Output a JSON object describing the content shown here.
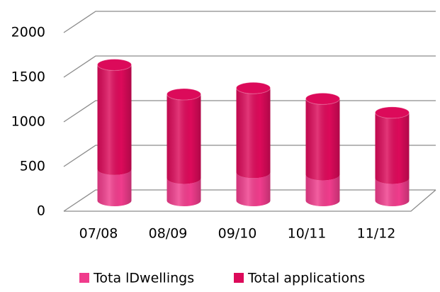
{
  "chart_data": {
    "type": "bar3d_stacked",
    "categories": [
      "07/08",
      "08/09",
      "09/10",
      "10/11",
      "11/12"
    ],
    "series": [
      {
        "name": "Tota lDwellings",
        "color": "#f03c8c",
        "values": [
          350,
          250,
          315,
          290,
          250
        ]
      },
      {
        "name": "Total applications",
        "color": "#dc0a5a",
        "values": [
          1170,
          940,
          945,
          850,
          735
        ]
      }
    ],
    "ylim": [
      0,
      2000
    ],
    "yticks": [
      0,
      500,
      1000,
      1500,
      2000
    ],
    "grid": true,
    "legend": "bottom"
  }
}
